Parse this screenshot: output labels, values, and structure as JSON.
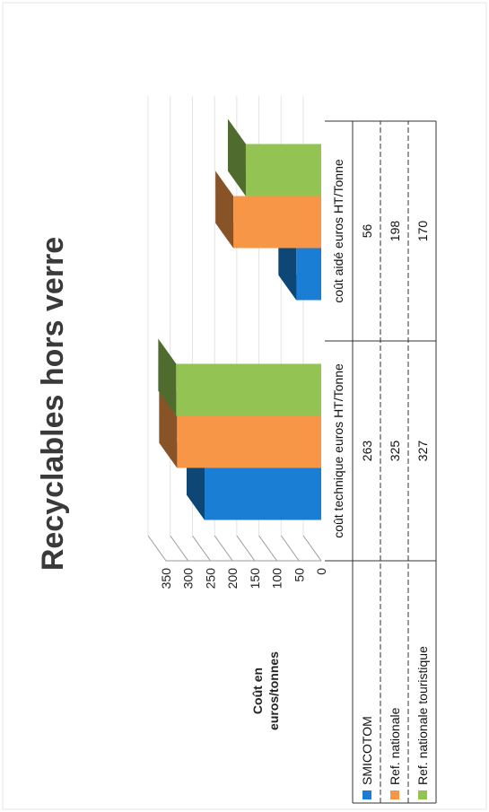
{
  "chart_data": {
    "type": "bar",
    "title": "Recyclables hors verre",
    "ylabel": "Coût en euros/tonnes",
    "xlabel": "",
    "ylim": [
      0,
      350
    ],
    "yticks": [
      "0",
      "50",
      "100",
      "150",
      "200",
      "250",
      "300",
      "350"
    ],
    "categories": [
      "coût technique euros HT/Tonne",
      "coût aidé euros HT/Tonne"
    ],
    "series": [
      {
        "name": "SMICOTOM",
        "color": "#1a7fd4",
        "values": [
          263,
          56
        ]
      },
      {
        "name": "Ref. nationale",
        "color": "#f79646",
        "values": [
          325,
          198
        ]
      },
      {
        "name": "Ref. nationale touristique",
        "color": "#92c353",
        "values": [
          327,
          170
        ]
      }
    ],
    "data_table": true,
    "legend": "left"
  }
}
